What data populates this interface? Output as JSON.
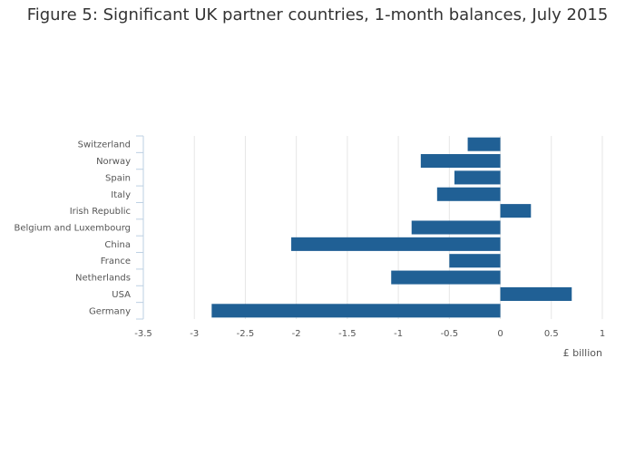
{
  "chart_data": {
    "type": "bar",
    "orientation": "horizontal",
    "title": "Figure 5: Significant UK partner countries, 1-month balances, July 2015",
    "xlabel": "£ billion",
    "ylabel": "",
    "xlim": [
      -3.5,
      1
    ],
    "xticks": [
      -3.5,
      -3,
      -2.5,
      -2,
      -1.5,
      -1,
      -0.5,
      0,
      0.5,
      1
    ],
    "xtick_labels": [
      "-3.5",
      "-3",
      "-2.5",
      "-2",
      "-1.5",
      "-1",
      "-0.5",
      "0",
      "0.5",
      "1"
    ],
    "grid": true,
    "bar_color": "#206095",
    "categories": [
      "Switzerland",
      "Norway",
      "Spain",
      "Italy",
      "Irish Republic",
      "Belgium and Luxembourg",
      "China",
      "France",
      "Netherlands",
      "USA",
      "Germany"
    ],
    "values": [
      -0.32,
      -0.78,
      -0.45,
      -0.62,
      0.3,
      -0.87,
      -2.05,
      -0.5,
      -1.07,
      0.7,
      -2.83
    ]
  }
}
